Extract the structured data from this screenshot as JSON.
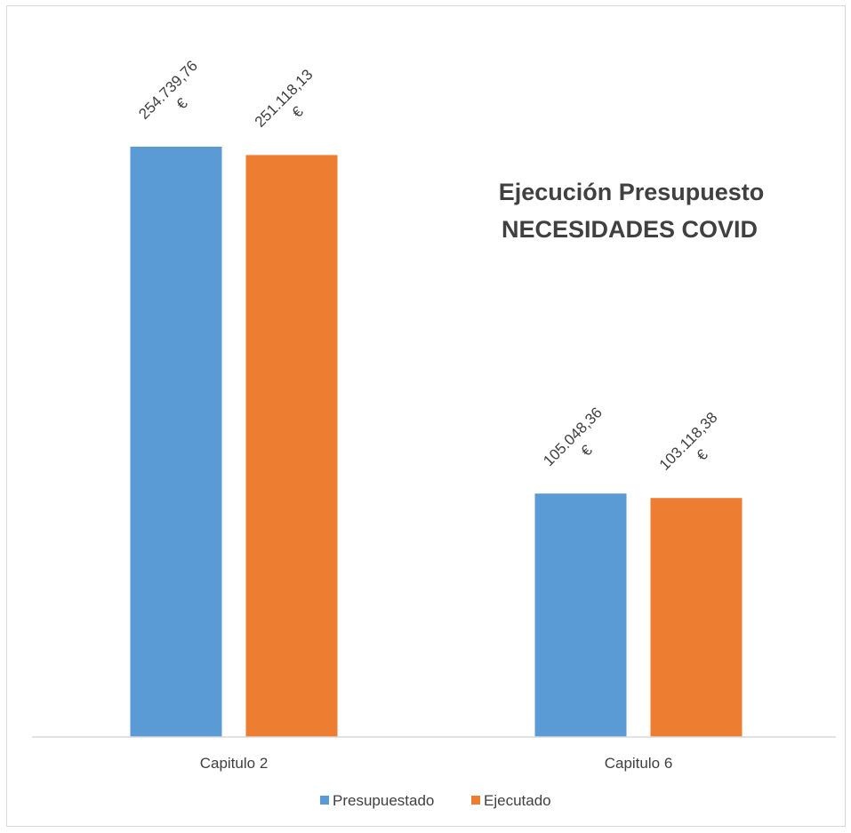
{
  "chart_data": {
    "type": "bar",
    "title_lines": [
      "Ejecución Presupuesto",
      "NECESIDADES COVID"
    ],
    "categories": [
      "Capitulo 2",
      "Capitulo 6"
    ],
    "series": [
      {
        "name": "Presupuestado",
        "color": "#5b9bd5",
        "values": [
          254739.76,
          105048.36
        ],
        "labels": [
          [
            "254.739,76",
            "€"
          ],
          [
            "105.048,36",
            "€"
          ]
        ]
      },
      {
        "name": "Ejecutado",
        "color": "#ed7d31",
        "values": [
          251118.13,
          103118.38
        ],
        "labels": [
          [
            "251.118,13",
            "€"
          ],
          [
            "103.118,38",
            "€"
          ]
        ]
      }
    ],
    "ylim": [
      0,
      300000
    ],
    "grid": false,
    "legend_position": "bottom"
  }
}
